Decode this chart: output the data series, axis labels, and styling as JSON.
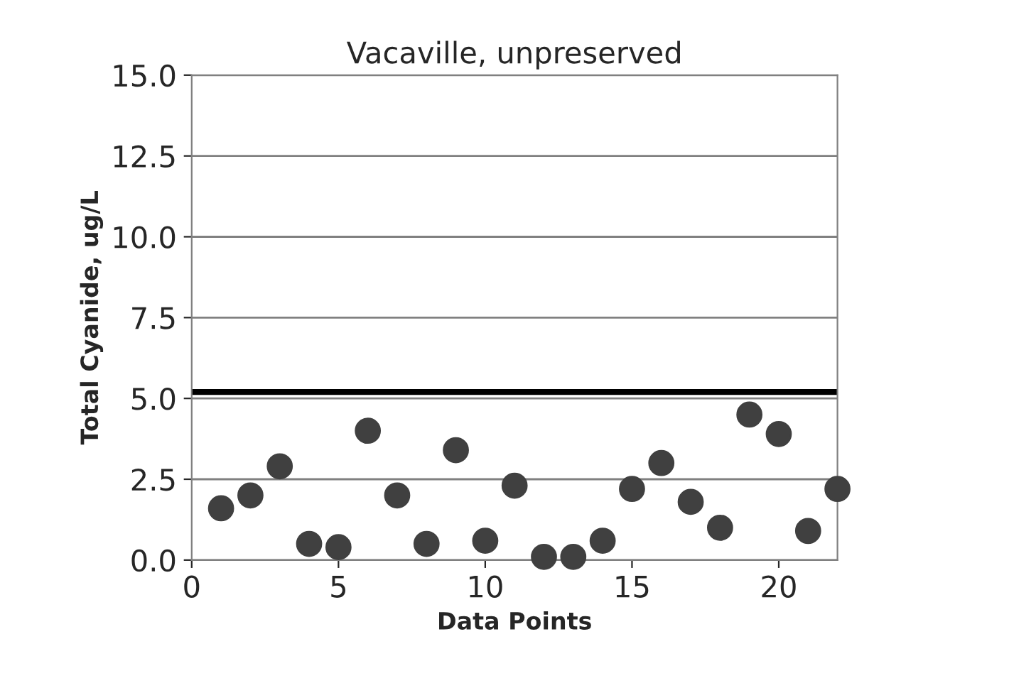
{
  "chart_data": {
    "type": "scatter",
    "title": "Vacaville, unpreserved",
    "xlabel": "Data Points",
    "ylabel": "Total Cyanide, ug/L",
    "x": [
      1,
      2,
      3,
      4,
      5,
      6,
      7,
      8,
      9,
      10,
      11,
      12,
      13,
      14,
      15,
      16,
      17,
      18,
      19,
      20,
      21,
      22
    ],
    "series": [
      {
        "color": "#404040",
        "values": [
          1.6,
          2.0,
          2.9,
          0.5,
          0.4,
          4.0,
          2.0,
          0.5,
          3.4,
          0.6,
          2.3,
          0.1,
          0.1,
          0.6,
          2.2,
          3.0,
          1.8,
          1.0,
          4.5,
          3.9,
          0.9,
          2.2
        ]
      }
    ],
    "xlim": [
      0,
      22
    ],
    "xticks": [
      0,
      5,
      10,
      15,
      20
    ],
    "ylim": [
      0,
      15
    ],
    "yticks": [
      {
        "value": 0,
        "label": "0.0"
      },
      {
        "value": 2.5,
        "label": "2.5"
      },
      {
        "value": 5,
        "label": "5.0"
      },
      {
        "value": 7.5,
        "label": "7.5"
      },
      {
        "value": 10,
        "label": "10.0"
      },
      {
        "value": 12.5,
        "label": "12.5"
      },
      {
        "value": 15,
        "label": "15.0"
      }
    ],
    "ref_lines": [
      {
        "axis": "y",
        "value": 5.2,
        "color": "#000000"
      }
    ],
    "grid": "y",
    "marker": "circle",
    "legend": false
  }
}
